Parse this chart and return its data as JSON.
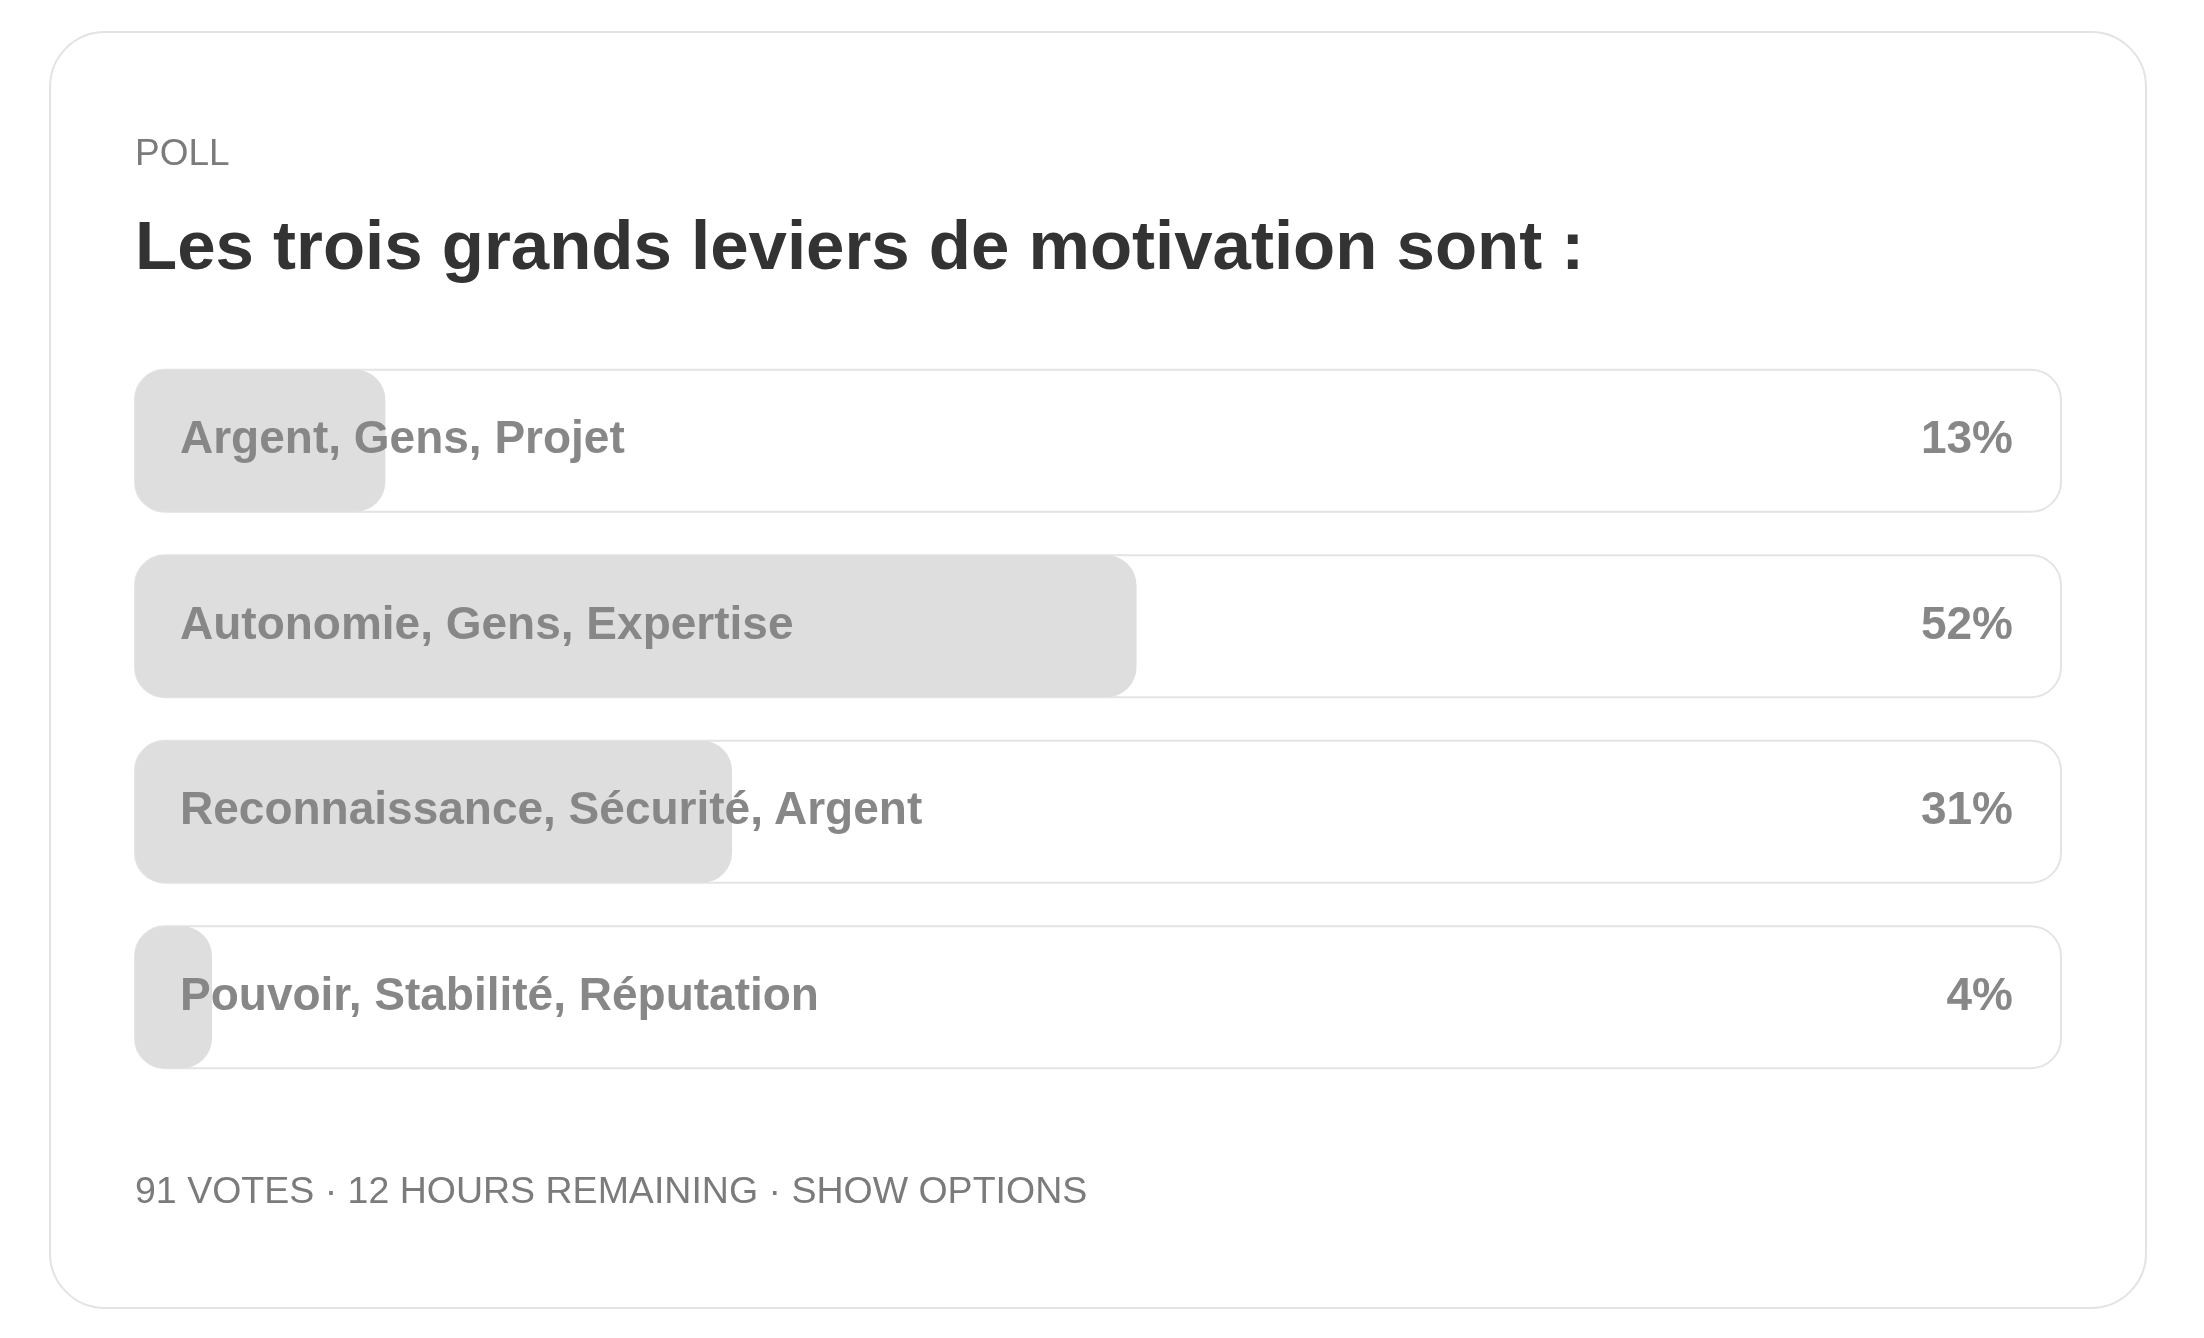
{
  "chart_data": {
    "type": "bar",
    "orientation": "horizontal",
    "subtitle": "POLL",
    "title": "Les trois grands leviers de motivation sont :",
    "categories": [
      "Argent, Gens, Projet",
      "Autonomie, Gens, Expertise",
      "Reconnaissance, Sécurité, Argent",
      "Pouvoir, Stabilité, Réputation"
    ],
    "values": [
      13,
      52,
      31,
      4
    ],
    "color": "#dedede",
    "value_labels": [
      "13%",
      "52%",
      "31%",
      "4%"
    ],
    "xlim": [
      0,
      100
    ],
    "tick_labels": "y",
    "annotations": [
      "91 VOTES · 12 HOURS REMAINING · SHOW OPTIONS"
    ]
  }
}
